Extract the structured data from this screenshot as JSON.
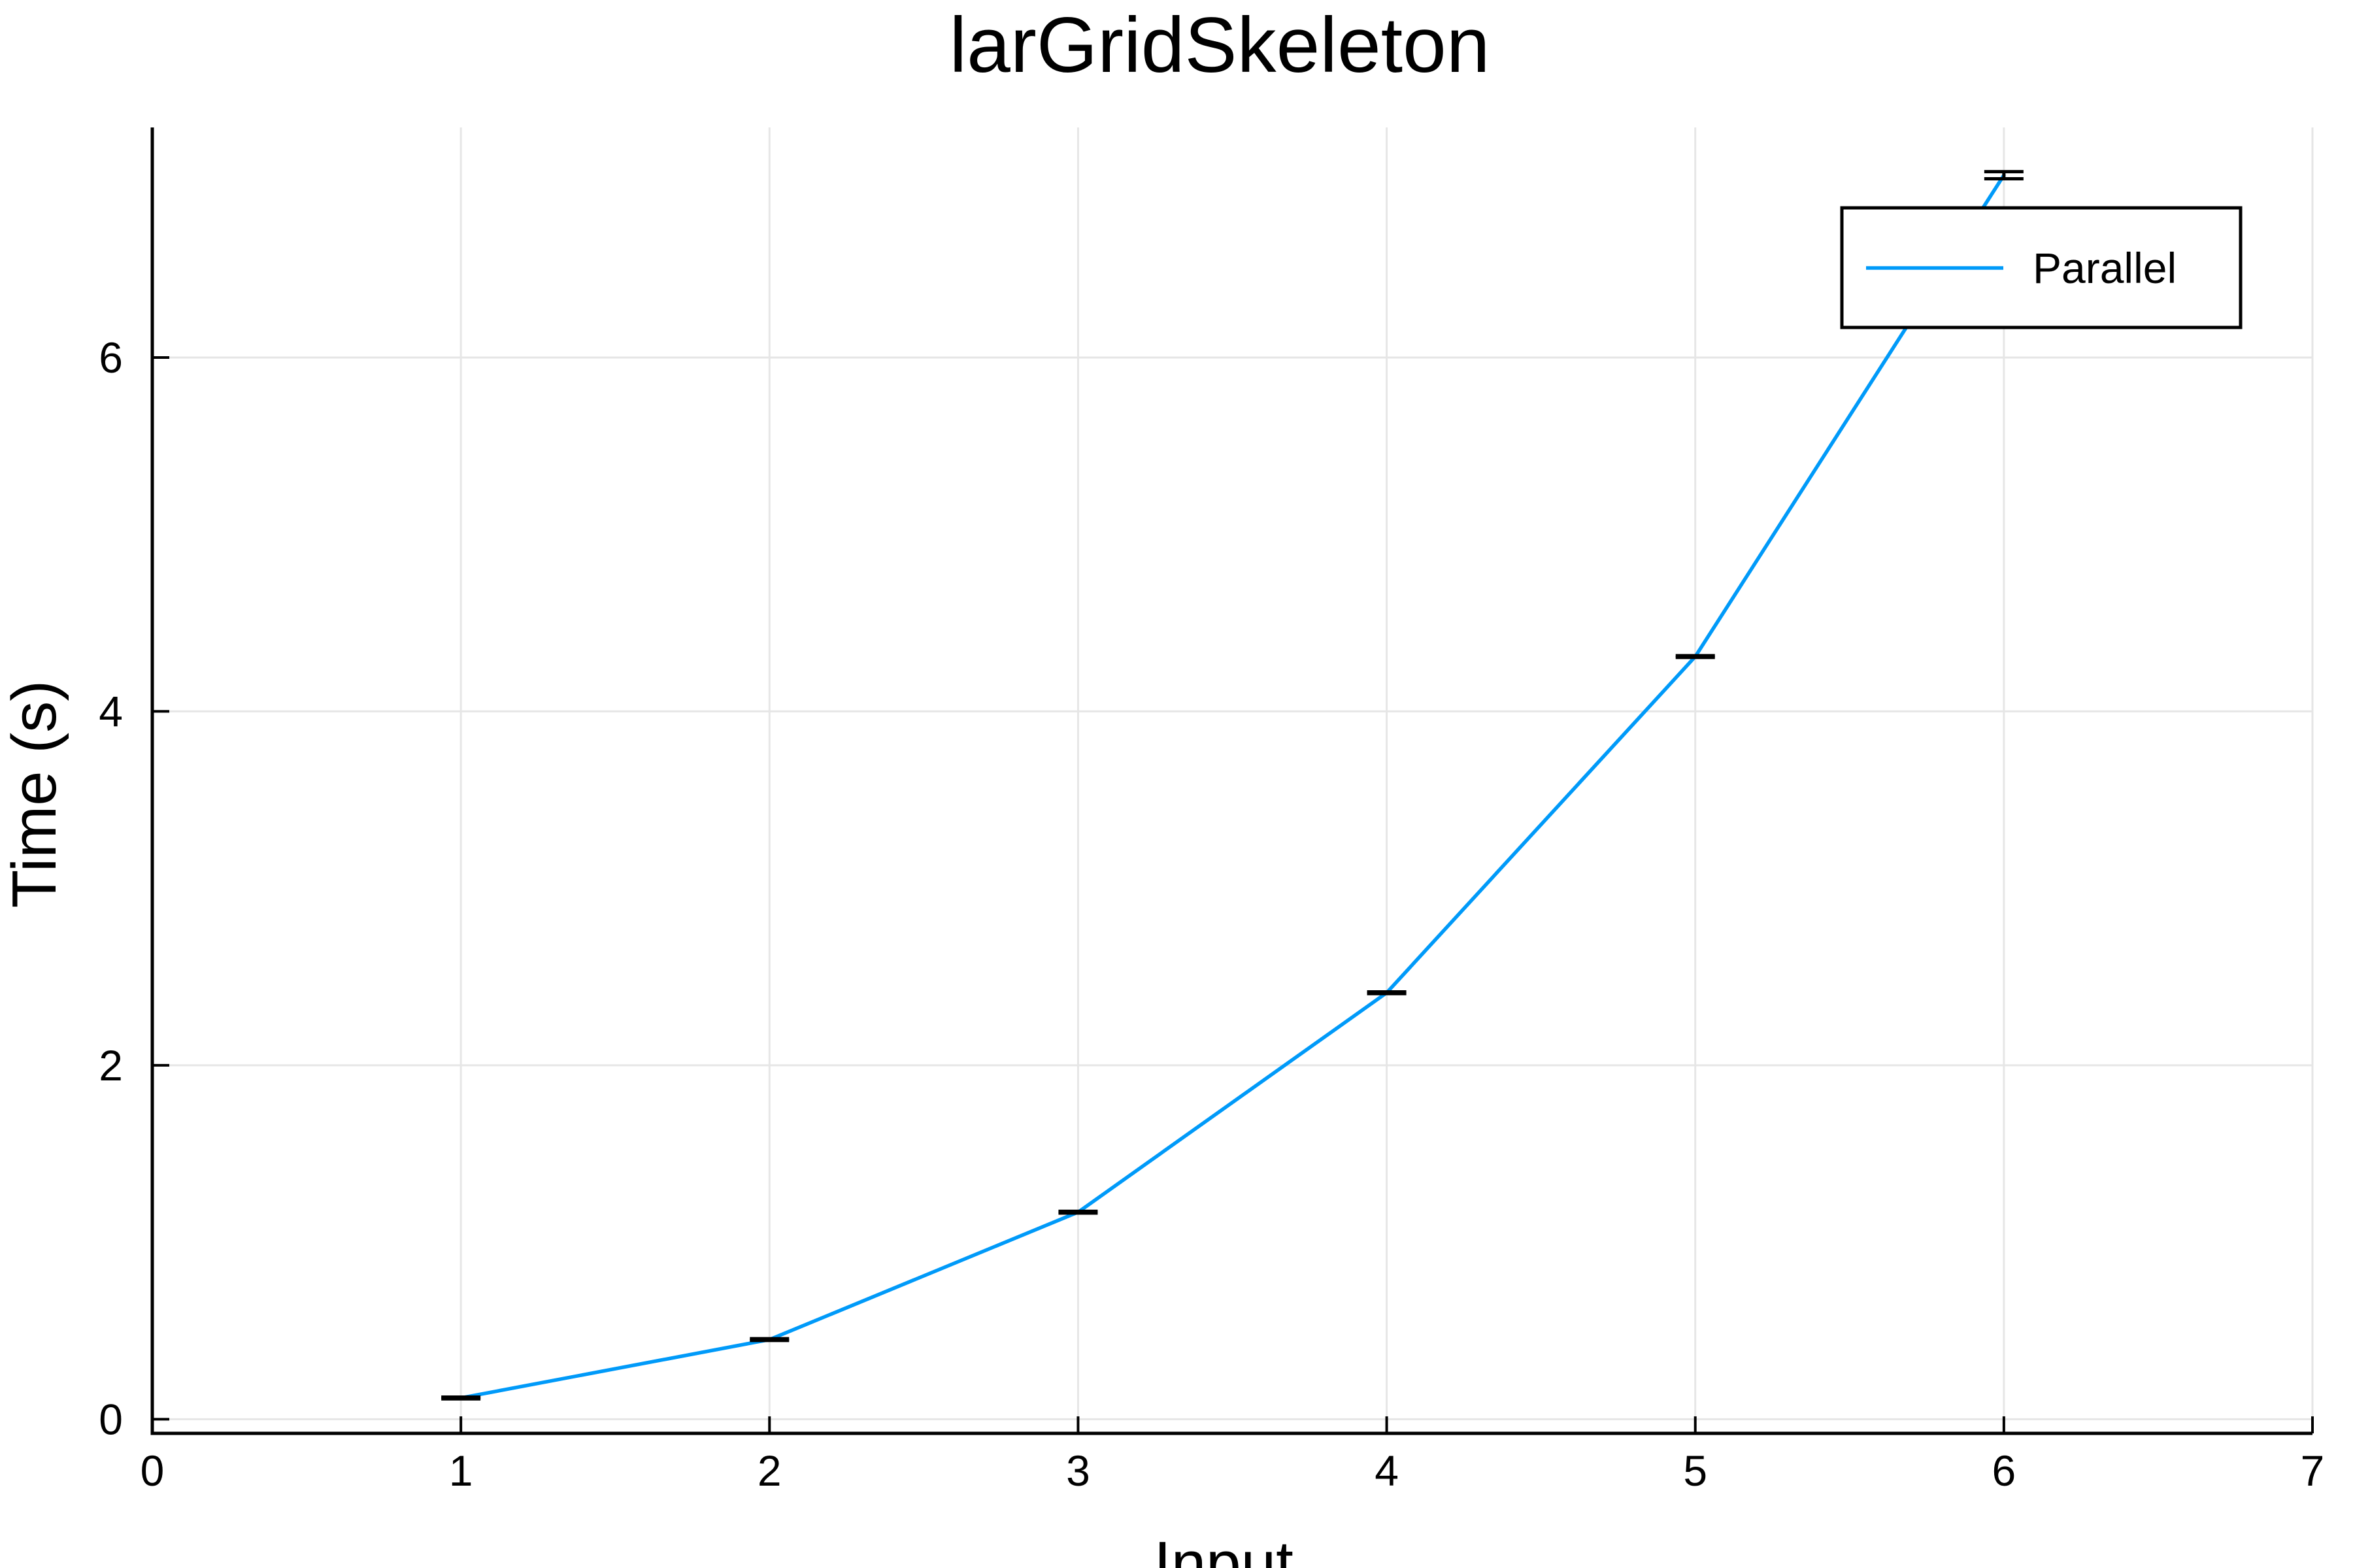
{
  "chart_data": {
    "type": "line",
    "title": "larGridSkeleton",
    "xlabel": "Input",
    "ylabel": "Time (s)",
    "xlim": [
      0,
      7
    ],
    "ylim": [
      -0.08,
      7.3
    ],
    "xticks": [
      0,
      1,
      2,
      3,
      4,
      5,
      6,
      7
    ],
    "yticks": [
      0,
      2,
      4,
      6
    ],
    "x_tick_labels": [
      "0",
      "1",
      "2",
      "3",
      "4",
      "5",
      "6",
      "7"
    ],
    "y_tick_labels": [
      "0",
      "2",
      "4",
      "6"
    ],
    "grid": true,
    "legend_position": "top-right",
    "series": [
      {
        "name": "Parallel",
        "color": "#009af9",
        "x": [
          1,
          2,
          3,
          4,
          5,
          6
        ],
        "y": [
          0.12,
          0.45,
          1.17,
          2.41,
          4.31,
          7.03
        ],
        "error": [
          0.005,
          0.005,
          0.005,
          0.005,
          0.005,
          0.02
        ]
      }
    ]
  }
}
